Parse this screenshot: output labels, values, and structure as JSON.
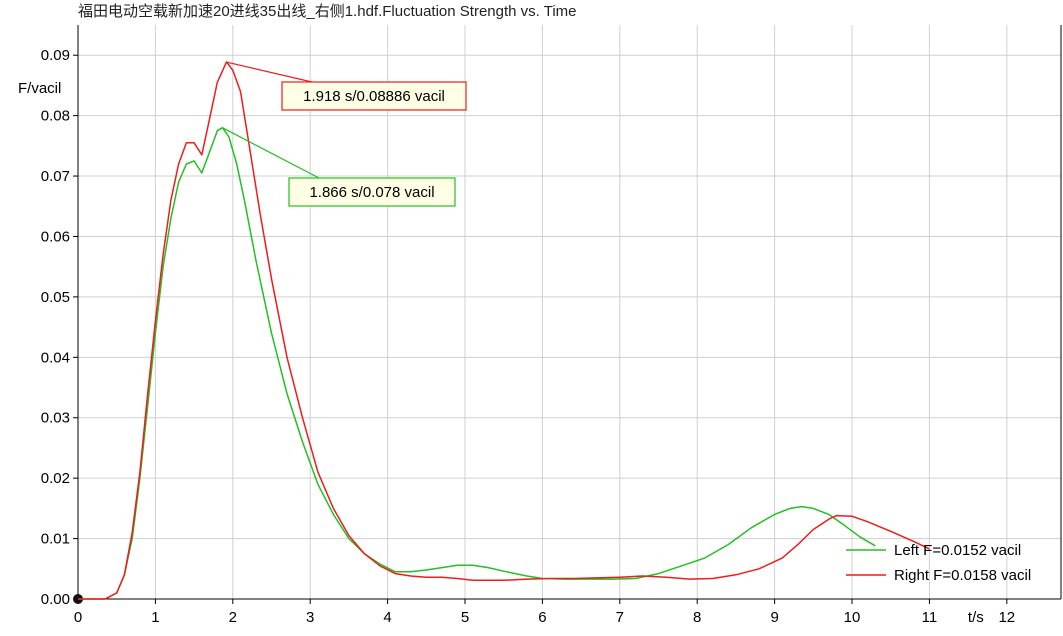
{
  "chart_data": {
    "type": "line",
    "title": "福田电动空载新加速20进线35出线_右侧1.hdf.Fluctuation Strength vs. Time",
    "xlabel": "t/s",
    "ylabel": "F/vacil",
    "xlim": [
      0,
      12.7
    ],
    "ylim": [
      0,
      0.095
    ],
    "x_ticks": [
      0,
      1,
      2,
      3,
      4,
      5,
      6,
      7,
      8,
      9,
      10,
      11
    ],
    "x_tick_labels": [
      "0",
      "1",
      "2",
      "3",
      "4",
      "5",
      "6",
      "7",
      "8",
      "9",
      "10",
      "11"
    ],
    "x_label_tick": {
      "value": 12,
      "label": "12"
    },
    "y_ticks": [
      0,
      0.01,
      0.02,
      0.03,
      0.04,
      0.05,
      0.06,
      0.07,
      0.08,
      0.09
    ],
    "y_tick_labels": [
      "0.00",
      "0.01",
      "0.02",
      "0.03",
      "0.04",
      "0.05",
      "0.06",
      "0.07",
      "0.08",
      "0.09"
    ],
    "grid": true,
    "legend_position": "bottom-right",
    "series": [
      {
        "name": "Left F=0.0152 vacil",
        "color": "#22c022",
        "x": [
          0.35,
          0.5,
          0.6,
          0.7,
          0.8,
          0.9,
          1.0,
          1.1,
          1.2,
          1.3,
          1.4,
          1.5,
          1.6,
          1.7,
          1.8,
          1.866,
          1.95,
          2.05,
          2.15,
          2.3,
          2.5,
          2.7,
          2.9,
          3.1,
          3.3,
          3.5,
          3.7,
          3.9,
          4.1,
          4.3,
          4.5,
          4.7,
          4.9,
          5.1,
          5.3,
          5.5,
          5.8,
          6.0,
          6.3,
          6.6,
          6.9,
          7.2,
          7.5,
          7.8,
          8.1,
          8.4,
          8.7,
          9.0,
          9.2,
          9.35,
          9.5,
          9.7,
          9.9,
          10.1,
          10.3
        ],
        "y": [
          0,
          0.001,
          0.004,
          0.01,
          0.02,
          0.032,
          0.044,
          0.055,
          0.063,
          0.069,
          0.072,
          0.0725,
          0.0705,
          0.074,
          0.0775,
          0.078,
          0.0765,
          0.072,
          0.066,
          0.056,
          0.044,
          0.034,
          0.026,
          0.019,
          0.014,
          0.01,
          0.0075,
          0.0058,
          0.0045,
          0.0045,
          0.0048,
          0.0052,
          0.0056,
          0.0056,
          0.0052,
          0.0046,
          0.0038,
          0.0034,
          0.0033,
          0.0033,
          0.0033,
          0.0034,
          0.0042,
          0.0055,
          0.0068,
          0.009,
          0.0118,
          0.014,
          0.015,
          0.0153,
          0.015,
          0.014,
          0.0122,
          0.0103,
          0.0088
        ]
      },
      {
        "name": "Right F=0.0158 vacil",
        "color": "#ee1c1c",
        "x": [
          0.35,
          0.5,
          0.6,
          0.7,
          0.8,
          0.9,
          1.0,
          1.1,
          1.2,
          1.3,
          1.4,
          1.5,
          1.6,
          1.7,
          1.8,
          1.918,
          2.0,
          2.1,
          2.2,
          2.35,
          2.5,
          2.7,
          2.9,
          3.1,
          3.3,
          3.5,
          3.7,
          3.9,
          4.1,
          4.3,
          4.5,
          4.7,
          4.9,
          5.1,
          5.3,
          5.5,
          5.8,
          6.1,
          6.4,
          6.7,
          7.0,
          7.3,
          7.6,
          7.9,
          8.2,
          8.5,
          8.8,
          9.1,
          9.3,
          9.5,
          9.7,
          9.8,
          10.0,
          10.2,
          10.5,
          10.8,
          11.0
        ],
        "y": [
          0,
          0.001,
          0.004,
          0.011,
          0.021,
          0.034,
          0.046,
          0.057,
          0.066,
          0.072,
          0.0755,
          0.0755,
          0.0735,
          0.0795,
          0.0855,
          0.0889,
          0.0875,
          0.084,
          0.076,
          0.064,
          0.053,
          0.04,
          0.03,
          0.021,
          0.015,
          0.0105,
          0.0075,
          0.0055,
          0.0042,
          0.0038,
          0.0036,
          0.0036,
          0.0034,
          0.0031,
          0.0031,
          0.0031,
          0.0033,
          0.0034,
          0.0034,
          0.0035,
          0.0036,
          0.0038,
          0.0036,
          0.0033,
          0.0034,
          0.004,
          0.005,
          0.0068,
          0.009,
          0.0115,
          0.0132,
          0.0138,
          0.0137,
          0.0128,
          0.0112,
          0.0095,
          0.0083
        ]
      }
    ],
    "annotations": [
      {
        "text": "1.918 s/0.08886 vacil",
        "x": 1.918,
        "y": 0.08886,
        "color": "#ee1c1c",
        "fill": "#ffffe6"
      },
      {
        "text": "1.866 s/0.078 vacil",
        "x": 1.866,
        "y": 0.078,
        "color": "#22c022",
        "fill": "#ffffe6"
      }
    ]
  }
}
